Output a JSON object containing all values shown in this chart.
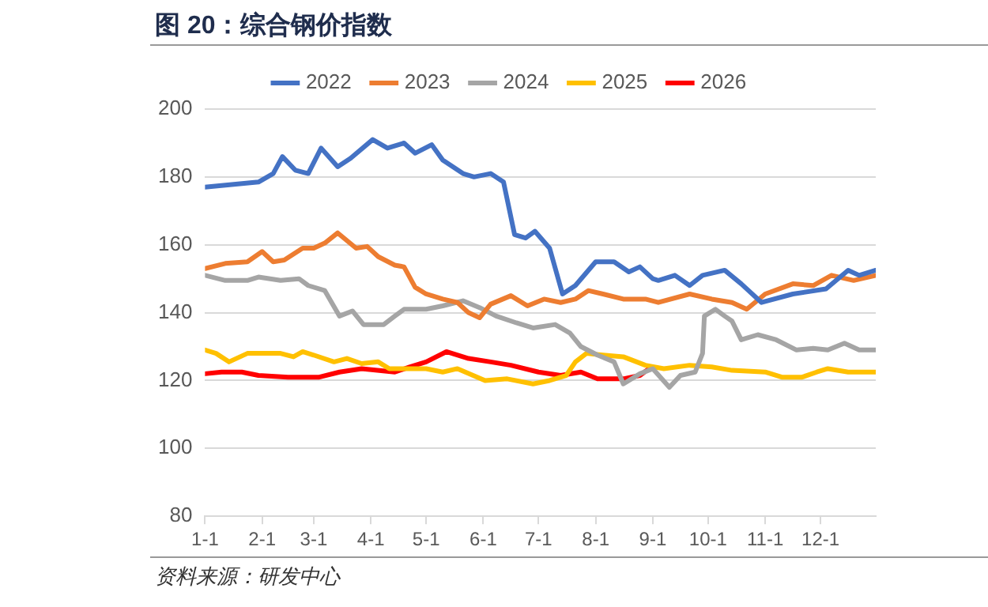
{
  "chart_data": {
    "type": "line",
    "title": "图 20：综合钢价指数",
    "annotations": [
      "资料来源：研发中心"
    ],
    "xlim": [
      "--01-01",
      "--12-31"
    ],
    "xticks": [
      {
        "value": "--01-01",
        "label": "1-1"
      },
      {
        "value": "--02-01",
        "label": "2-1"
      },
      {
        "value": "--03-01",
        "label": "3-1"
      },
      {
        "value": "--04-01",
        "label": "4-1"
      },
      {
        "value": "--05-01",
        "label": "5-1"
      },
      {
        "value": "--06-01",
        "label": "6-1"
      },
      {
        "value": "--07-01",
        "label": "7-1"
      },
      {
        "value": "--08-01",
        "label": "8-1"
      },
      {
        "value": "--09-01",
        "label": "9-1"
      },
      {
        "value": "--10-01",
        "label": "10-1"
      },
      {
        "value": "--11-01",
        "label": "11-1"
      },
      {
        "value": "--12-01",
        "label": "12-1"
      }
    ],
    "ylim": [
      80,
      200
    ],
    "yticks": [
      80,
      100,
      120,
      140,
      160,
      180,
      200
    ],
    "grid": "y",
    "legend": "top",
    "marker": "none",
    "line_style": "solid",
    "series": [
      {
        "name": "2022",
        "color": "#4472c4",
        "x": [
          "--01-01",
          "--01-30",
          "--02-07",
          "--02-12",
          "--02-19",
          "--02-26",
          "--03-05",
          "--03-14",
          "--03-21",
          "--04-02",
          "--04-10",
          "--04-19",
          "--04-25",
          "--05-04",
          "--05-10",
          "--05-21",
          "--05-27",
          "--06-05",
          "--06-12",
          "--06-18",
          "--06-24",
          "--06-29",
          "--07-07",
          "--07-14",
          "--07-21",
          "--08-01",
          "--08-11",
          "--08-19",
          "--08-25",
          "--09-01",
          "--09-04",
          "--09-13",
          "--09-21",
          "--09-28",
          "--10-10",
          "--10-19",
          "--10-30",
          "--11-16",
          "--12-04",
          "--12-16",
          "--12-22",
          "--12-31"
        ],
        "values": [
          177,
          178.5,
          181,
          186,
          182,
          181,
          188.5,
          183,
          185.5,
          191,
          188.5,
          190,
          187,
          189.5,
          185,
          181,
          180,
          181,
          178.5,
          163,
          162,
          164,
          159,
          145.5,
          148,
          155,
          155,
          152,
          153.5,
          150,
          149.5,
          151,
          148,
          151,
          152.5,
          148.5,
          143,
          145.5,
          147,
          152.5,
          151,
          152.5
        ]
      },
      {
        "name": "2023",
        "color": "#ed7d31",
        "x": [
          "--01-01",
          "--01-12",
          "--01-24",
          "--02-01",
          "--02-07",
          "--02-13",
          "--02-23",
          "--03-01",
          "--03-07",
          "--03-14",
          "--03-24",
          "--03-30",
          "--04-05",
          "--04-14",
          "--04-19",
          "--04-25",
          "--05-01",
          "--05-10",
          "--05-18",
          "--05-24",
          "--05-30",
          "--06-05",
          "--06-16",
          "--06-25",
          "--07-04",
          "--07-13",
          "--07-21",
          "--07-28",
          "--08-05",
          "--08-16",
          "--08-28",
          "--09-04",
          "--09-21",
          "--10-03",
          "--10-14",
          "--10-22",
          "--11-01",
          "--11-16",
          "--11-27",
          "--12-07",
          "--12-19",
          "--12-31"
        ],
        "values": [
          153,
          154.5,
          155,
          158,
          155,
          155.5,
          159,
          159,
          160.5,
          163.5,
          159,
          159.5,
          156.5,
          154,
          153.5,
          147.5,
          145.5,
          144,
          143,
          140,
          138.5,
          142.5,
          145,
          142,
          144,
          143,
          144,
          146.5,
          145.5,
          144,
          144,
          143,
          145.5,
          144,
          143,
          141,
          145.5,
          148.5,
          148,
          151,
          149.5,
          151
        ]
      },
      {
        "name": "2024",
        "color": "#a5a5a5",
        "x": [
          "--01-01",
          "--01-12",
          "--01-24",
          "--01-30",
          "--02-11",
          "--02-21",
          "--02-26",
          "--03-07",
          "--03-15",
          "--03-22",
          "--03-28",
          "--04-08",
          "--04-14",
          "--04-19",
          "--05-01",
          "--05-10",
          "--05-21",
          "--05-30",
          "--06-08",
          "--06-19",
          "--06-28",
          "--07-10",
          "--07-18",
          "--07-24",
          "--08-02",
          "--08-11",
          "--08-16",
          "--08-25",
          "--09-01",
          "--09-10",
          "--09-16",
          "--09-24",
          "--09-28",
          "--09-29",
          "--10-05",
          "--10-10",
          "--10-14",
          "--10-19",
          "--10-28",
          "--11-07",
          "--11-18",
          "--11-27",
          "--12-05",
          "--12-14",
          "--12-22",
          "--12-31"
        ],
        "values": [
          151,
          149.5,
          149.5,
          150.5,
          149.5,
          150,
          148,
          146.5,
          139,
          140.5,
          136.5,
          136.5,
          139,
          141,
          141,
          142,
          143.5,
          141.5,
          139,
          137,
          135.5,
          136.5,
          134,
          130,
          127.5,
          125.5,
          119,
          122,
          123.5,
          118,
          121.5,
          122.5,
          128,
          139,
          141,
          139,
          137.5,
          132,
          133.5,
          132,
          129,
          129.5,
          129,
          131,
          129,
          129
        ]
      },
      {
        "name": "2025",
        "color": "#ffc000",
        "x": [
          "--01-01",
          "--01-07",
          "--01-14",
          "--01-24",
          "--02-11",
          "--02-18",
          "--02-23",
          "--03-01",
          "--03-12",
          "--03-19",
          "--03-27",
          "--04-05",
          "--04-11",
          "--05-01",
          "--05-10",
          "--05-18",
          "--06-02",
          "--06-14",
          "--06-28",
          "--07-07",
          "--07-16",
          "--07-21",
          "--07-27",
          "--08-05",
          "--08-16",
          "--08-28",
          "--09-07",
          "--09-21",
          "--10-03",
          "--10-14",
          "--11-01",
          "--11-10",
          "--11-21",
          "--11-29",
          "--12-05",
          "--12-16",
          "--12-31"
        ],
        "values": [
          129,
          128,
          125.5,
          128,
          128,
          127,
          128.5,
          127.5,
          125.5,
          126.5,
          125,
          125.5,
          123.5,
          123.5,
          122.5,
          123.5,
          120,
          120.5,
          119,
          120,
          121.5,
          125.5,
          128,
          127.5,
          127,
          124.5,
          123.5,
          124.5,
          124,
          123,
          122.5,
          121,
          121,
          122.5,
          123.5,
          122.5,
          122.5
        ]
      },
      {
        "name": "2026",
        "color": "#ff0000",
        "x": [
          "--01-01",
          "--01-10",
          "--01-21",
          "--01-30",
          "--02-15",
          "--03-04",
          "--03-15",
          "--03-27",
          "--04-14",
          "--04-22",
          "--05-01",
          "--05-12",
          "--05-24",
          "--06-05",
          "--06-16",
          "--07-01",
          "--07-13",
          "--07-24",
          "--08-02",
          "--08-16",
          "--08-25",
          "--08-30"
        ],
        "values": [
          122,
          122.5,
          122.5,
          121.5,
          121,
          121,
          122.5,
          123.5,
          122.5,
          124,
          125.5,
          128.5,
          126.5,
          125.5,
          124.5,
          122.5,
          121.5,
          122.5,
          120.5,
          120.5,
          121.5,
          123.5
        ]
      }
    ]
  }
}
